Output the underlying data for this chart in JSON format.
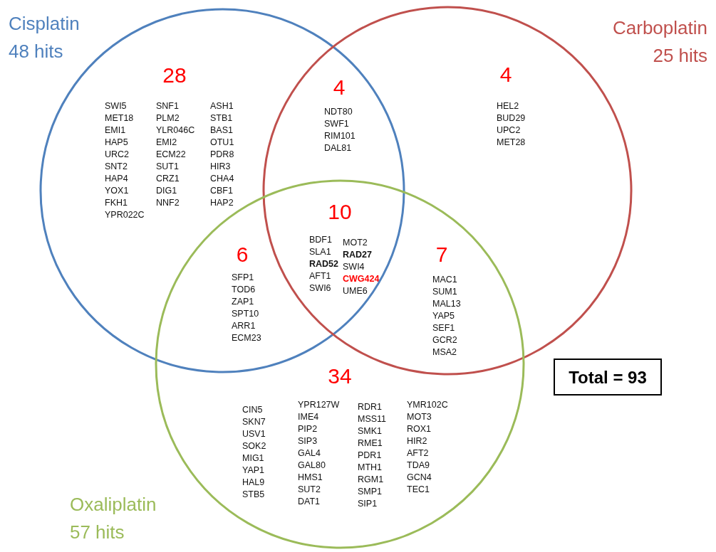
{
  "chart_data": [
    {
      "type": "other",
      "categories": [
        null,
        null,
        null,
        null,
        null,
        null,
        null
      ],
      "values": [
        28,
        4,
        4,
        10,
        6,
        7,
        34
      ],
      "colors": [
        "#ff0000",
        "#ff0000",
        "#ff0000",
        "#ff0000",
        "#ff0000",
        "#ff0000",
        "#ff0000"
      ],
      "data_labels": true,
      "annotations": [
        "SWI5\nMET18\nEMI1\nHAP5\nURC2\nSNT2\nHAP4\nYOX1\nFKH1\nYPR022C",
        "SNF1\nPLM2\nYLR046C\nEMI2\nECM22\nSUT1\nCRZ1\nDIG1\nNNF2",
        "ASH1\nSTB1\nBAS1\nOTU1\nPDR8\nHIR3\nCHA4\nCBF1\nHAP2",
        "NDT80\nSWF1\nRIM101\nDAL81",
        "HEL2\nBUD29\nUPC2\nMET28",
        "BDF1\nSLA1\nRAD52\nAFT1\nSWI6",
        "MOT2\nRAD27\nSWI4\nCWG424\nUME6",
        "SFP1\nTOD6\nZAP1\nSPT10\nARR1\nECM23",
        "MAC1\nSUM1\nMAL13\nYAP5\nSEF1\nGCR2\nMSA2",
        "CIN5\nSKN7\nUSV1\nSOK2\nMIG1\nYAP1\nHAL9\nSTB5",
        "YPR127W\nIME4\nPIP2\nSIP3\nGAL4\nGAL80\nHMS1\nSUT2\nDAT1",
        "RDR1\nMSS11\nSMK1\nRME1\nPDR1\nMTH1\nRGM1\nSMP1\nSIP1",
        "YMR102C\nMOT3\nROX1\nHIR2\nAFT2\nTDA9\nGCN4\nTEC1",
        "Total = 93"
      ]
    },
    {
      "type": "other",
      "categories": [
        "Cisplatin",
        "Carboplatin",
        "Oxaliplatin"
      ],
      "values": [
        48,
        25,
        57
      ],
      "colors": [
        "#4f81bd",
        "#c0504d",
        "#9bbb59"
      ],
      "data_labels": true,
      "annotations": [
        "hits"
      ]
    }
  ]
}
